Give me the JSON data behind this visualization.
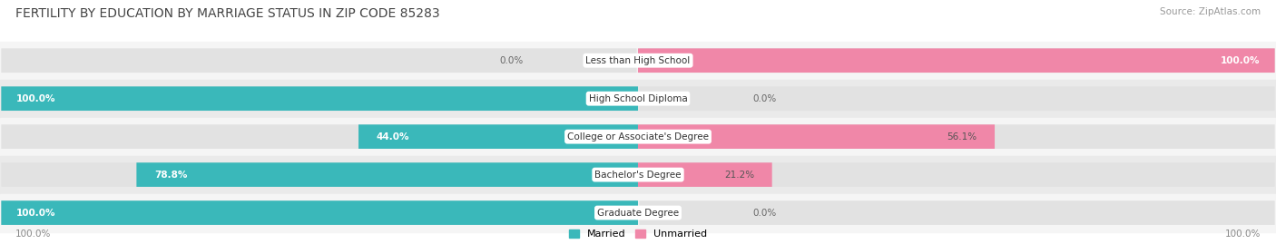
{
  "title": "FERTILITY BY EDUCATION BY MARRIAGE STATUS IN ZIP CODE 85283",
  "source": "Source: ZipAtlas.com",
  "categories": [
    "Less than High School",
    "High School Diploma",
    "College or Associate's Degree",
    "Bachelor's Degree",
    "Graduate Degree"
  ],
  "married": [
    0.0,
    100.0,
    44.0,
    78.8,
    100.0
  ],
  "unmarried": [
    100.0,
    0.0,
    56.1,
    21.2,
    0.0
  ],
  "married_color": "#3ab8ba",
  "unmarried_color": "#f087a8",
  "bar_bg_color": "#e2e2e2",
  "row_bg_colors": [
    "#f5f5f5",
    "#eaeaea"
  ],
  "title_fontsize": 10,
  "source_fontsize": 7.5,
  "label_fontsize": 7.5,
  "value_fontsize": 7.5,
  "legend_fontsize": 8,
  "footer_fontsize": 7.5,
  "figsize": [
    14.06,
    2.69
  ],
  "dpi": 100
}
